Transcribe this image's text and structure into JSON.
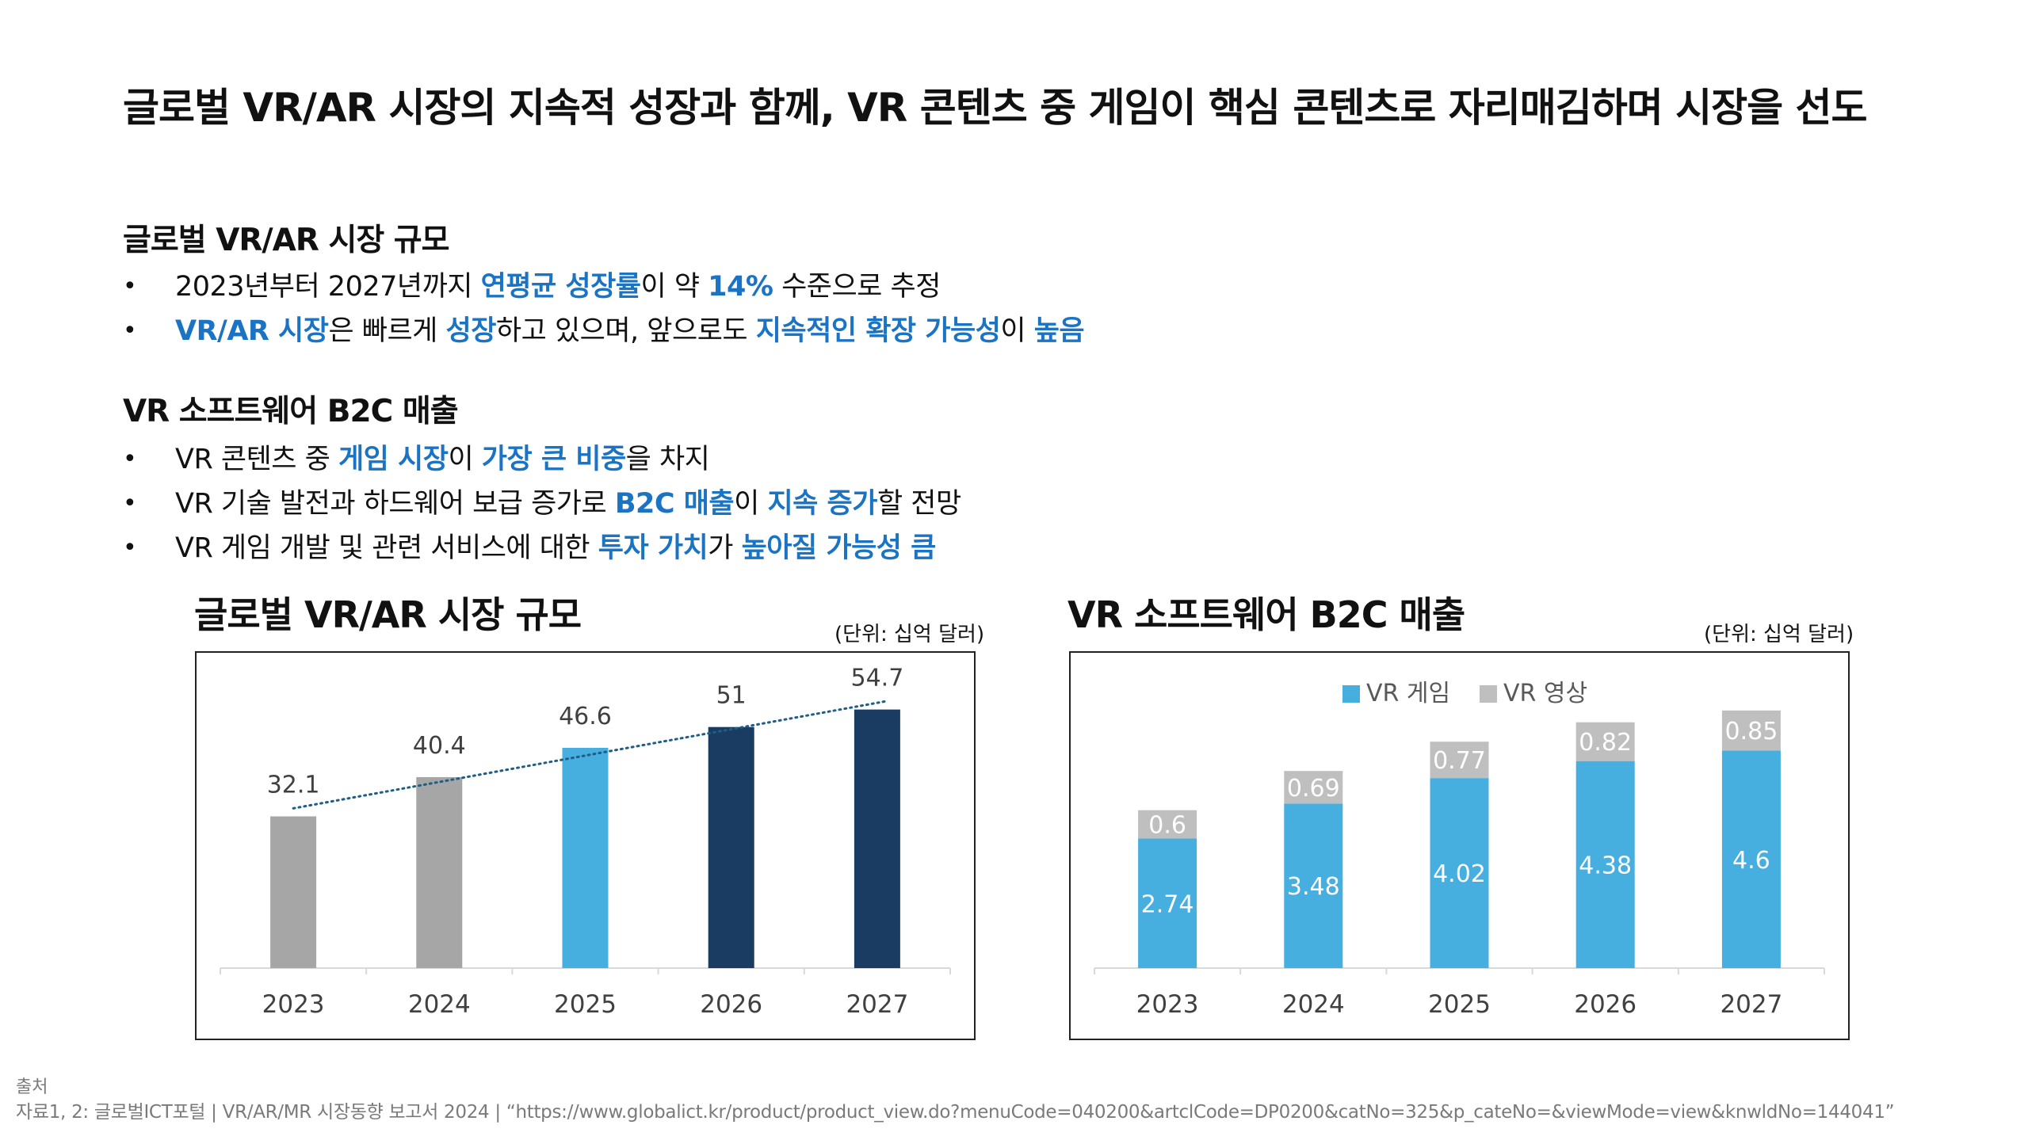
{
  "headline": "글로벌 VR/AR 시장의 지속적 성장과 함께, VR 콘텐츠 중 게임이 핵심 콘텐츠로 자리매김하며 시장을 선도",
  "section1": {
    "title": "글로벌 VR/AR 시장 규모",
    "bullets": [
      [
        {
          "t": "2023년부터 2027년까지 ",
          "h": false
        },
        {
          "t": "연평균 성장률",
          "h": true
        },
        {
          "t": "이 약 ",
          "h": false
        },
        {
          "t": "14%",
          "h": true
        },
        {
          "t": " 수준으로 추정",
          "h": false
        }
      ],
      [
        {
          "t": "VR/AR 시장",
          "h": true
        },
        {
          "t": "은 빠르게 ",
          "h": false
        },
        {
          "t": "성장",
          "h": true
        },
        {
          "t": "하고 있으며, 앞으로도 ",
          "h": false
        },
        {
          "t": "지속적인 확장 가능성",
          "h": true
        },
        {
          "t": "이 ",
          "h": false
        },
        {
          "t": "높음",
          "h": true
        }
      ]
    ]
  },
  "section2": {
    "title": "VR 소프트웨어 B2C 매출",
    "bullets": [
      [
        {
          "t": "VR 콘텐츠 중 ",
          "h": false
        },
        {
          "t": "게임 시장",
          "h": true
        },
        {
          "t": "이 ",
          "h": false
        },
        {
          "t": "가장 큰 비중",
          "h": true
        },
        {
          "t": "을 차지",
          "h": false
        }
      ],
      [
        {
          "t": "VR 기술 발전과 하드웨어 보급 증가로 ",
          "h": false
        },
        {
          "t": "B2C 매출",
          "h": true
        },
        {
          "t": "이 ",
          "h": false
        },
        {
          "t": "지속 증가",
          "h": true
        },
        {
          "t": "할 전망",
          "h": false
        }
      ],
      [
        {
          "t": "VR 게임 개발 및 관련 서비스에 대한 ",
          "h": false
        },
        {
          "t": "투자 가치",
          "h": true
        },
        {
          "t": "가 ",
          "h": false
        },
        {
          "t": "높아질 가능성 큼",
          "h": true
        }
      ]
    ]
  },
  "bullet_symbol": "•",
  "chart1": {
    "title": "글로벌 VR/AR 시장 규모",
    "unit": "(단위: 십억 달러)"
  },
  "chart2": {
    "title": "VR 소프트웨어 B2C 매출",
    "unit": "(단위: 십억 달러)"
  },
  "chart_data": [
    {
      "type": "bar",
      "title": "글로벌 VR/AR 시장 규모",
      "unit": "(단위: 십억 달러)",
      "categories": [
        "2023",
        "2024",
        "2025",
        "2026",
        "2027"
      ],
      "values": [
        32.1,
        40.4,
        46.6,
        51,
        54.7
      ],
      "bar_colors": [
        "#a6a6a6",
        "#a6a6a6",
        "#47aee0",
        "#1b3c62",
        "#1b3c62"
      ],
      "trendline": {
        "style": "dotted",
        "color": "#1f5e85"
      },
      "ylim": [
        0,
        60
      ],
      "grid": false,
      "legend": "none"
    },
    {
      "type": "bar",
      "stacked": true,
      "title": "VR 소프트웨어 B2C 매출",
      "unit": "(단위: 십억 달러)",
      "categories": [
        "2023",
        "2024",
        "2025",
        "2026",
        "2027"
      ],
      "series": [
        {
          "name": "VR 게임",
          "values": [
            2.74,
            3.48,
            4.02,
            4.38,
            4.6
          ],
          "color": "#47aee0"
        },
        {
          "name": "VR 영상",
          "values": [
            0.6,
            0.69,
            0.77,
            0.82,
            0.85
          ],
          "color": "#bfbfbf"
        }
      ],
      "ylim": [
        0,
        6
      ],
      "grid": false,
      "legend": "top"
    }
  ],
  "source": {
    "label": "출처",
    "text": "자료1, 2: 글로벌ICT포털 | VR/AR/MR 시장동향 보고서 2024 | “https://www.globalict.kr/product/product_view.do?menuCode=040200&artclCode=DP0200&catNo=325&p_cateNo=&viewMode=view&knwldNo=144041”"
  }
}
